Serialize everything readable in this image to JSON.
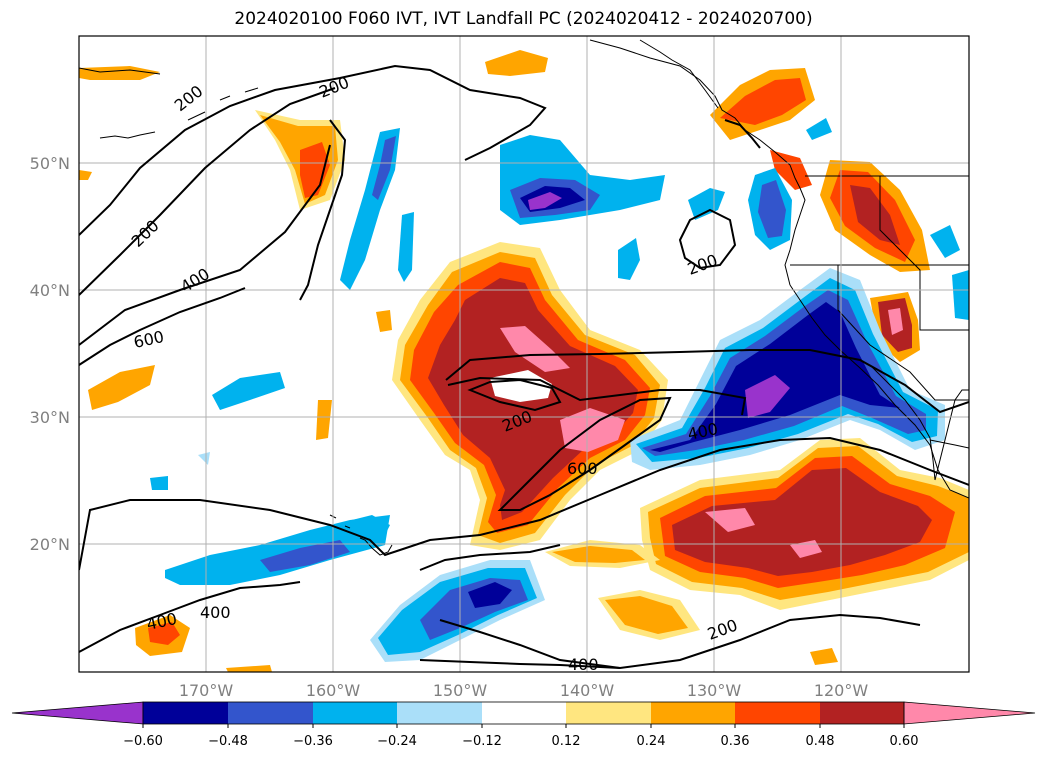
{
  "title": "2024020100 F060 IVT, IVT Landfall PC (2024020412 - 2024020700)",
  "map": {
    "region": "North-east Pacific",
    "lon_ticks": [
      "170°W",
      "160°W",
      "150°W",
      "140°W",
      "130°W",
      "120°W"
    ],
    "lat_ticks": [
      "50°N",
      "40°N",
      "30°N",
      "20°N"
    ],
    "gridlines": true,
    "colors": {
      "land_outline": "#000000",
      "contour": "#000000",
      "grid": "#b0b0b0",
      "tick_text": "#808080"
    }
  },
  "ivt_contours": {
    "levels": [
      200,
      400,
      600
    ],
    "labels": [
      "200",
      "200",
      "200",
      "200",
      "400",
      "600",
      "200",
      "600",
      "400",
      "400",
      "400",
      "200",
      "400"
    ]
  },
  "colorbar": {
    "ticks": [
      "−0.60",
      "−0.48",
      "−0.36",
      "−0.24",
      "−0.12",
      "0.12",
      "0.24",
      "0.36",
      "0.48",
      "0.60"
    ],
    "colors": [
      "#9933cc",
      "#000099",
      "#3355cc",
      "#00b2ee",
      "#aadff9",
      "#ffffff",
      "#ffe680",
      "#ffa500",
      "#ff4500",
      "#b22222",
      "#ff88aa"
    ],
    "extend": "both"
  }
}
